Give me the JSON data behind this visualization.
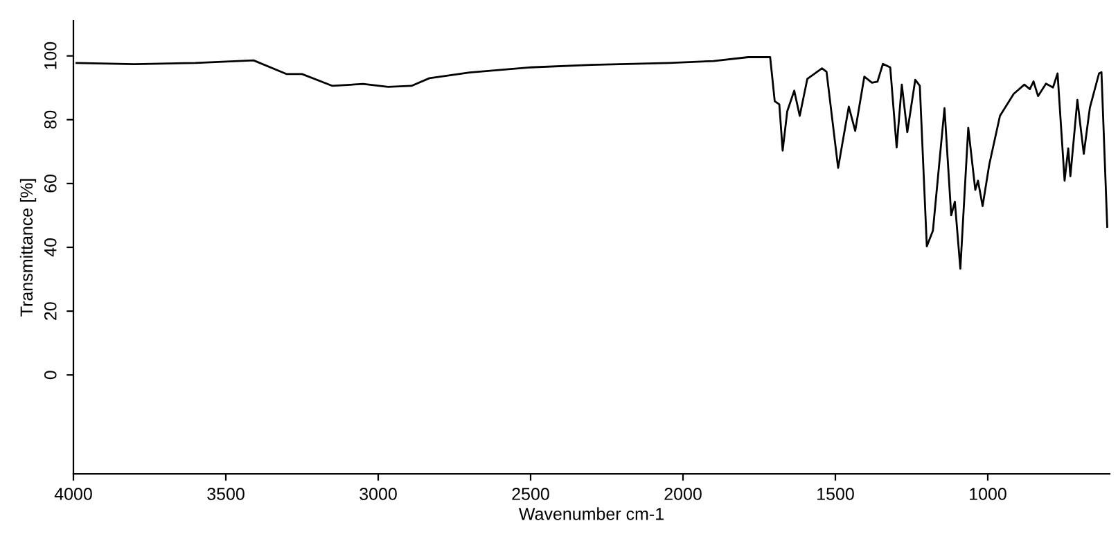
{
  "chart_data": {
    "type": "line",
    "xlabel": "Wavenumber cm-1",
    "ylabel": "Transmittance [%]",
    "xlim": [
      4000,
      600
    ],
    "ylim": [
      -31,
      111
    ],
    "xticks": [
      4000,
      3500,
      3000,
      2500,
      2000,
      1500,
      1000
    ],
    "yticks": [
      0,
      20,
      40,
      60,
      80,
      100
    ],
    "marker": "none",
    "line_style": "solid",
    "series": [
      {
        "color": "#000000",
        "x": [
          3990,
          3800,
          3600,
          3409,
          3300,
          3250,
          3150,
          3050,
          2968,
          2891,
          2832,
          2700,
          2500,
          2300,
          2045,
          1900,
          1786,
          1714,
          1699,
          1684,
          1673,
          1658,
          1635,
          1617,
          1592,
          1544,
          1529,
          1491,
          1456,
          1435,
          1405,
          1380,
          1362,
          1344,
          1320,
          1299,
          1282,
          1264,
          1238,
          1223,
          1200,
          1180,
          1142,
          1120,
          1108,
          1090,
          1064,
          1041,
          1032,
          1017,
          995,
          960,
          915,
          880,
          862,
          850,
          835,
          809,
          786,
          771,
          748,
          736,
          729,
          706,
          685,
          665,
          635,
          627,
          608
        ],
        "values": [
          97.8,
          97.4,
          97.8,
          98.6,
          94.3,
          94.3,
          90.6,
          91.2,
          90.3,
          90.6,
          93,
          94.8,
          96.4,
          97.2,
          97.8,
          98.4,
          99.6,
          99.6,
          85.8,
          84.8,
          70.3,
          82.6,
          89.1,
          81.2,
          92.8,
          96.1,
          95.0,
          64.9,
          84.1,
          76.5,
          93.5,
          91.6,
          91.9,
          97.5,
          96.4,
          71.3,
          91,
          76.1,
          92.5,
          90.6,
          40.3,
          45.2,
          83.6,
          50,
          54.3,
          33.3,
          77.5,
          58,
          60.9,
          52.9,
          66,
          81.2,
          88.1,
          91,
          89.6,
          92,
          87.4,
          91.3,
          90.1,
          94.5,
          60.9,
          71,
          62.3,
          86.2,
          69.3,
          83.8,
          94.5,
          94.9,
          46.4
        ]
      }
    ]
  }
}
